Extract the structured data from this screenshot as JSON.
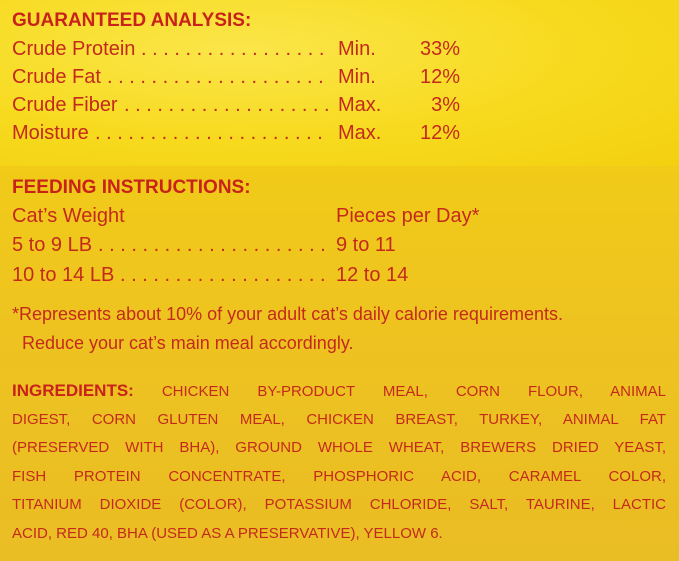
{
  "analysis": {
    "heading": "GUARANTEED ANALYSIS:",
    "rows": [
      {
        "label": "Crude Protein",
        "qualifier": "Min.",
        "value": "33%"
      },
      {
        "label": "Crude Fat",
        "qualifier": "Min.",
        "value": "12%"
      },
      {
        "label": "Crude Fiber",
        "qualifier": "Max.",
        "value": "3%"
      },
      {
        "label": "Moisture",
        "qualifier": "Max.",
        "value": "12%"
      }
    ]
  },
  "feeding": {
    "heading": "FEEDING INSTRUCTIONS:",
    "col1_header": "Cat’s Weight",
    "col2_header": "Pieces per Day*",
    "rows": [
      {
        "weight": "5 to 9 LB",
        "pieces": "9 to 11"
      },
      {
        "weight": "10 to 14 LB",
        "pieces": "12 to 14"
      }
    ],
    "footnote_lines": [
      "*Represents about 10% of your adult cat’s daily calorie requirements.",
      "Reduce your cat’s main meal accordingly."
    ]
  },
  "ingredients": {
    "label": "INGREDIENTS:",
    "lines": [
      "CHICKEN BY-PRODUCT MEAL, CORN FLOUR, ANIMAL",
      "DIGEST, CORN GLUTEN MEAL, CHICKEN BREAST, TURKEY, ANIMAL FAT",
      "(PRESERVED WITH BHA), GROUND WHOLE WHEAT, BREWERS DRIED YEAST,",
      "FISH PROTEIN CONCENTRATE, PHOSPHORIC ACID, CARAMEL COLOR,",
      "TITANIUM DIOXIDE (COLOR), POTASSIUM CHLORIDE, SALT, TAURINE, LACTIC",
      "ACID, RED 40, BHA (USED AS A PRESERVATIVE), YELLOW 6."
    ]
  },
  "colors": {
    "text": "#c42a1c",
    "background_top": "#f7da1e",
    "background_bottom": "#eec320"
  }
}
